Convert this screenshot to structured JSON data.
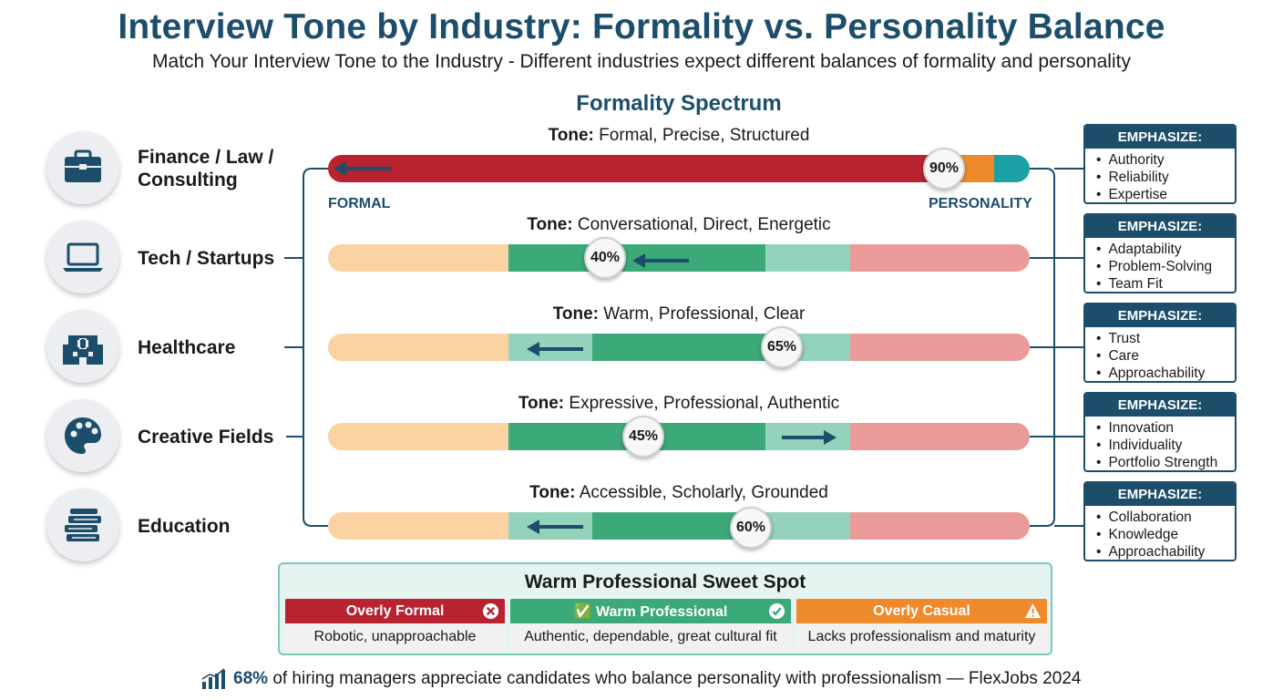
{
  "title": "Interview Tone by Industry: Formality vs. Personality Balance",
  "subtitle": "Match Your Interview Tone to the Industry - Different industries expect different balances of formality and personality",
  "spectrum_title": "Formality Spectrum",
  "axis": {
    "left": "FORMAL",
    "right": "PERSONALITY"
  },
  "tone_prefix": "Tone:",
  "emphasize_label": "EMPHASIZE:",
  "colors": {
    "navy": "#1c4e6b",
    "formal_red": "#b8232f",
    "green": "#3caa78",
    "orange": "#ef8a2c",
    "teal": "#1ba0a8"
  },
  "industries": [
    {
      "label": "Finance / Law / Consulting",
      "icon": "briefcase-icon",
      "tone": "Formal, Precise, Structured",
      "percent": 90,
      "percent_label": "90%",
      "arrow": "left",
      "emphasize": [
        "Authority",
        "Reliability",
        "Expertise"
      ]
    },
    {
      "label": "Tech / Startups",
      "icon": "laptop-icon",
      "tone": "Conversational, Direct, Energetic",
      "percent": 40,
      "percent_label": "40%",
      "arrow": "left",
      "emphasize": [
        "Adaptability",
        "Problem-Solving",
        "Team Fit"
      ]
    },
    {
      "label": "Healthcare",
      "icon": "hospital-icon",
      "tone": "Warm, Professional, Clear",
      "percent": 65,
      "percent_label": "65%",
      "arrow": "left",
      "emphasize": [
        "Trust",
        "Care",
        "Approachability"
      ]
    },
    {
      "label": "Creative Fields",
      "icon": "palette-icon",
      "tone": "Expressive, Professional, Authentic",
      "percent": 45,
      "percent_label": "45%",
      "arrow": "right",
      "emphasize": [
        "Innovation",
        "Individuality",
        "Portfolio Strength"
      ]
    },
    {
      "label": "Education",
      "icon": "books-icon",
      "tone": "Accessible, Scholarly, Grounded",
      "percent": 60,
      "percent_label": "60%",
      "arrow": "left",
      "emphasize": [
        "Collaboration",
        "Knowledge",
        "Approachability"
      ]
    }
  ],
  "sweet_spot": {
    "title": "Warm Professional Sweet Spot",
    "columns": [
      {
        "heading": "Overly Formal",
        "desc": "Robotic, unapproachable",
        "icon": "x-circle-icon",
        "color": "#b8232f"
      },
      {
        "heading": "✅ Warm Professional",
        "desc": "Authentic, dependable, great cultural fit",
        "icon": "check-circle-icon",
        "color": "#3caa78"
      },
      {
        "heading": "Overly Casual",
        "desc": "Lacks professionalism and maturity",
        "icon": "warning-icon",
        "color": "#ef8a2c"
      }
    ]
  },
  "footer": {
    "stat": "68%",
    "text": "of hiring managers appreciate candidates who balance personality with professionalism — FlexJobs 2024",
    "icon": "bar-chart-icon"
  }
}
